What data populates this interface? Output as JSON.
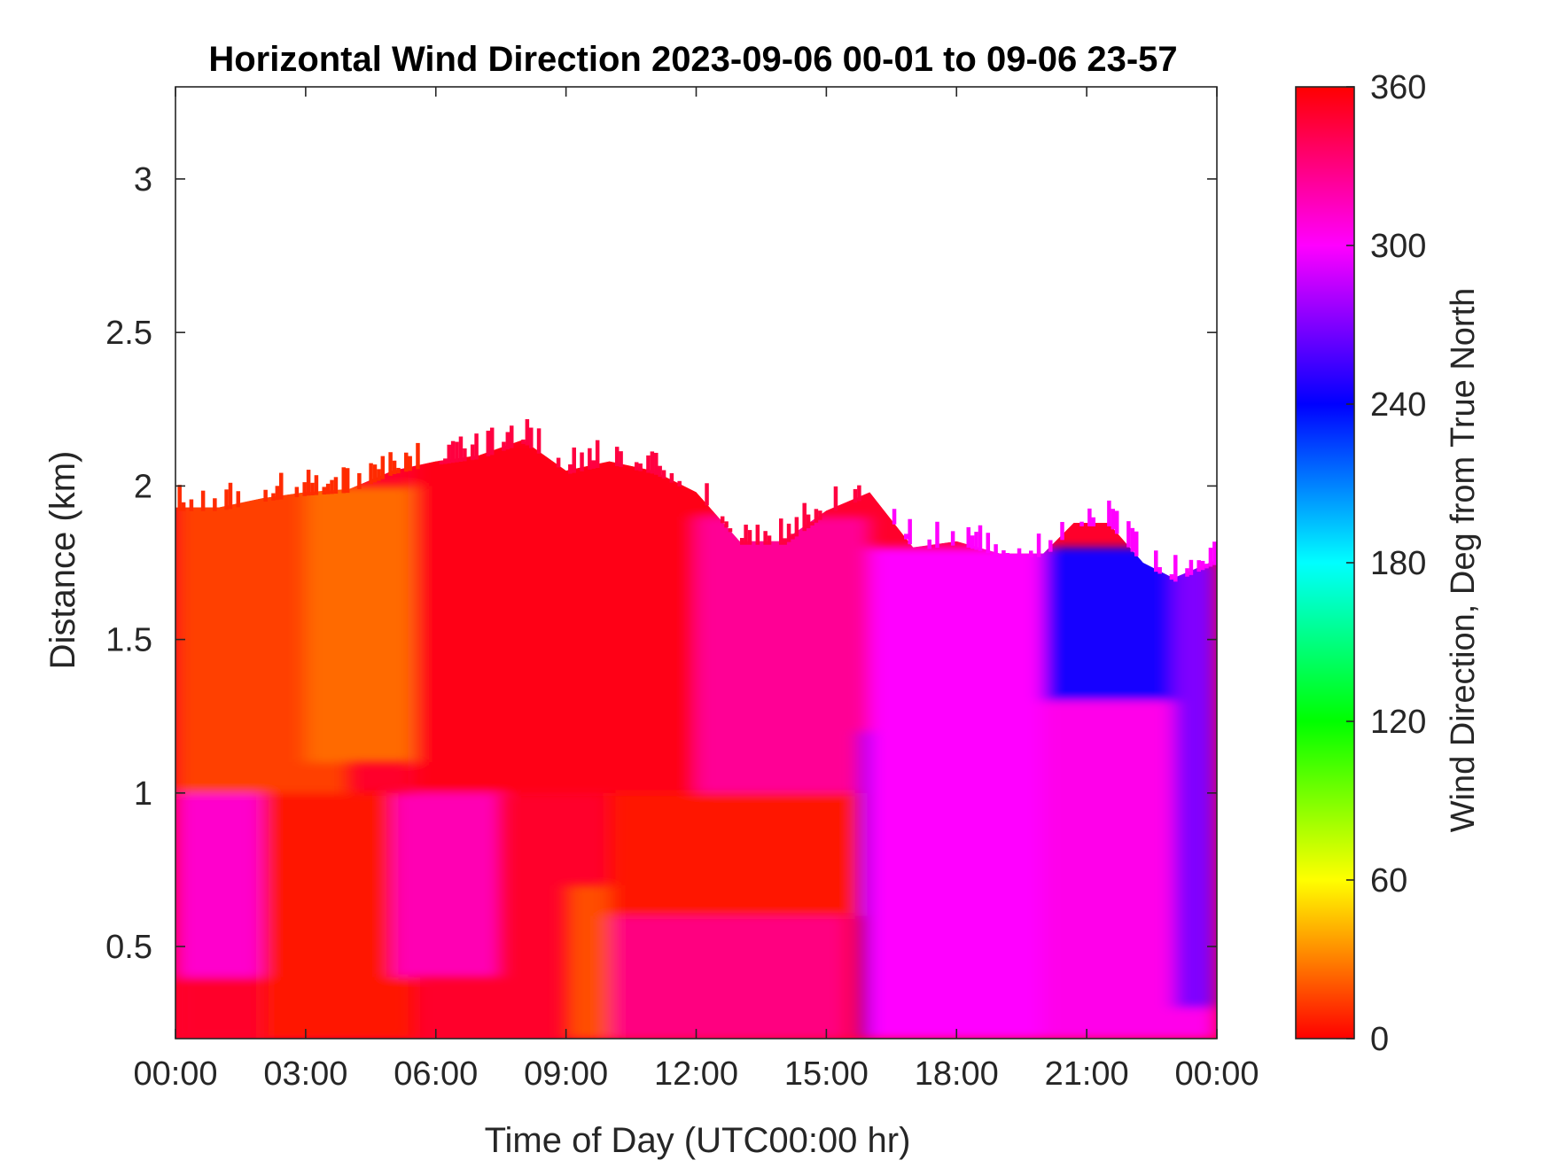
{
  "chart_data": {
    "type": "heatmap",
    "title": "Horizontal Wind Direction 2023-09-06 00-01 to 09-06 23-57",
    "xlabel": "Time of Day (UTC00:00 hr)",
    "ylabel": "Distance (km)",
    "colorbar_label": "Wind Direction, Deg from True North",
    "x_units": "hours",
    "xlim": [
      0,
      24
    ],
    "ylim": [
      0.2,
      3.3
    ],
    "x_ticks": [
      {
        "value": 0,
        "label": "00:00"
      },
      {
        "value": 3,
        "label": "03:00"
      },
      {
        "value": 6,
        "label": "06:00"
      },
      {
        "value": 9,
        "label": "09:00"
      },
      {
        "value": 12,
        "label": "12:00"
      },
      {
        "value": 15,
        "label": "15:00"
      },
      {
        "value": 18,
        "label": "18:00"
      },
      {
        "value": 21,
        "label": "21:00"
      },
      {
        "value": 24,
        "label": "00:00"
      }
    ],
    "y_ticks": [
      {
        "value": 0.5,
        "label": "0.5"
      },
      {
        "value": 1,
        "label": "1"
      },
      {
        "value": 1.5,
        "label": "1.5"
      },
      {
        "value": 2,
        "label": "2"
      },
      {
        "value": 2.5,
        "label": "2.5"
      },
      {
        "value": 3,
        "label": "3"
      }
    ],
    "colorbar_range": [
      0,
      360
    ],
    "colorbar_ticks": [
      {
        "value": 0,
        "label": "0"
      },
      {
        "value": 60,
        "label": "60"
      },
      {
        "value": 120,
        "label": "120"
      },
      {
        "value": 180,
        "label": "180"
      },
      {
        "value": 240,
        "label": "240"
      },
      {
        "value": 300,
        "label": "300"
      },
      {
        "value": 360,
        "label": "360"
      }
    ],
    "colormap": [
      {
        "value": 0,
        "color": "#ff0000"
      },
      {
        "value": 30,
        "color": "#ff8000"
      },
      {
        "value": 60,
        "color": "#ffff00"
      },
      {
        "value": 120,
        "color": "#00ff00"
      },
      {
        "value": 180,
        "color": "#00ffff"
      },
      {
        "value": 240,
        "color": "#0000ff"
      },
      {
        "value": 300,
        "color": "#ff00ff"
      },
      {
        "value": 360,
        "color": "#ff0000"
      }
    ],
    "grid": false,
    "data_top_boundary_km": [
      {
        "time": 0.0,
        "top": 1.93
      },
      {
        "time": 1.0,
        "top": 1.93
      },
      {
        "time": 2.0,
        "top": 1.96
      },
      {
        "time": 3.0,
        "top": 1.98
      },
      {
        "time": 4.0,
        "top": 1.99
      },
      {
        "time": 5.0,
        "top": 2.05
      },
      {
        "time": 6.0,
        "top": 2.08
      },
      {
        "time": 7.0,
        "top": 2.1
      },
      {
        "time": 8.0,
        "top": 2.15
      },
      {
        "time": 9.0,
        "top": 2.05
      },
      {
        "time": 10.0,
        "top": 2.08
      },
      {
        "time": 11.0,
        "top": 2.05
      },
      {
        "time": 12.0,
        "top": 1.98
      },
      {
        "time": 13.0,
        "top": 1.82
      },
      {
        "time": 14.0,
        "top": 1.82
      },
      {
        "time": 15.0,
        "top": 1.92
      },
      {
        "time": 16.0,
        "top": 1.98
      },
      {
        "time": 17.0,
        "top": 1.8
      },
      {
        "time": 18.0,
        "top": 1.82
      },
      {
        "time": 19.0,
        "top": 1.78
      },
      {
        "time": 20.0,
        "top": 1.78
      },
      {
        "time": 20.7,
        "top": 1.88
      },
      {
        "time": 21.5,
        "top": 1.88
      },
      {
        "time": 22.3,
        "top": 1.75
      },
      {
        "time": 23.0,
        "top": 1.7
      },
      {
        "time": 24.0,
        "top": 1.76
      }
    ],
    "direction_regions_deg": [
      {
        "t_start": 0,
        "t_end": 2.5,
        "z_start": 0.2,
        "z_end": 0.4,
        "direction": 350
      },
      {
        "t_start": 0,
        "t_end": 2.5,
        "z_start": 0.4,
        "z_end": 1.0,
        "direction": 312
      },
      {
        "t_start": 0,
        "t_end": 4,
        "z_start": 1.0,
        "z_end": 2.0,
        "direction": 15
      },
      {
        "t_start": 2,
        "t_end": 5.5,
        "z_start": 0.2,
        "z_end": 1.0,
        "direction": 5
      },
      {
        "t_start": 3,
        "t_end": 6,
        "z_start": 1.1,
        "z_end": 2.0,
        "direction": 25
      },
      {
        "t_start": 5,
        "t_end": 7.5,
        "z_start": 0.4,
        "z_end": 1.0,
        "direction": 318
      },
      {
        "t_start": 5.5,
        "t_end": 13,
        "z_start": 1.0,
        "z_end": 2.15,
        "direction": 355
      },
      {
        "t_start": 9,
        "t_end": 10.5,
        "z_start": 0.2,
        "z_end": 0.7,
        "direction": 18
      },
      {
        "t_start": 10,
        "t_end": 15.5,
        "z_start": 0.2,
        "z_end": 0.6,
        "direction": 330
      },
      {
        "t_start": 10,
        "t_end": 16,
        "z_start": 0.6,
        "z_end": 1.0,
        "direction": 5
      },
      {
        "t_start": 12,
        "t_end": 16,
        "z_start": 1.0,
        "z_end": 1.9,
        "direction": 325
      },
      {
        "t_start": 15.8,
        "t_end": 18,
        "z_start": 0.2,
        "z_end": 1.2,
        "direction": 265
      },
      {
        "t_start": 16,
        "t_end": 20,
        "z_start": 0.2,
        "z_end": 1.8,
        "direction": 300
      },
      {
        "t_start": 20,
        "t_end": 23,
        "z_start": 1.3,
        "z_end": 1.8,
        "direction": 245
      },
      {
        "t_start": 20,
        "t_end": 24,
        "z_start": 0.2,
        "z_end": 1.3,
        "direction": 305
      },
      {
        "t_start": 23,
        "t_end": 24,
        "z_start": 0.3,
        "z_end": 1.75,
        "direction": 270
      }
    ]
  }
}
